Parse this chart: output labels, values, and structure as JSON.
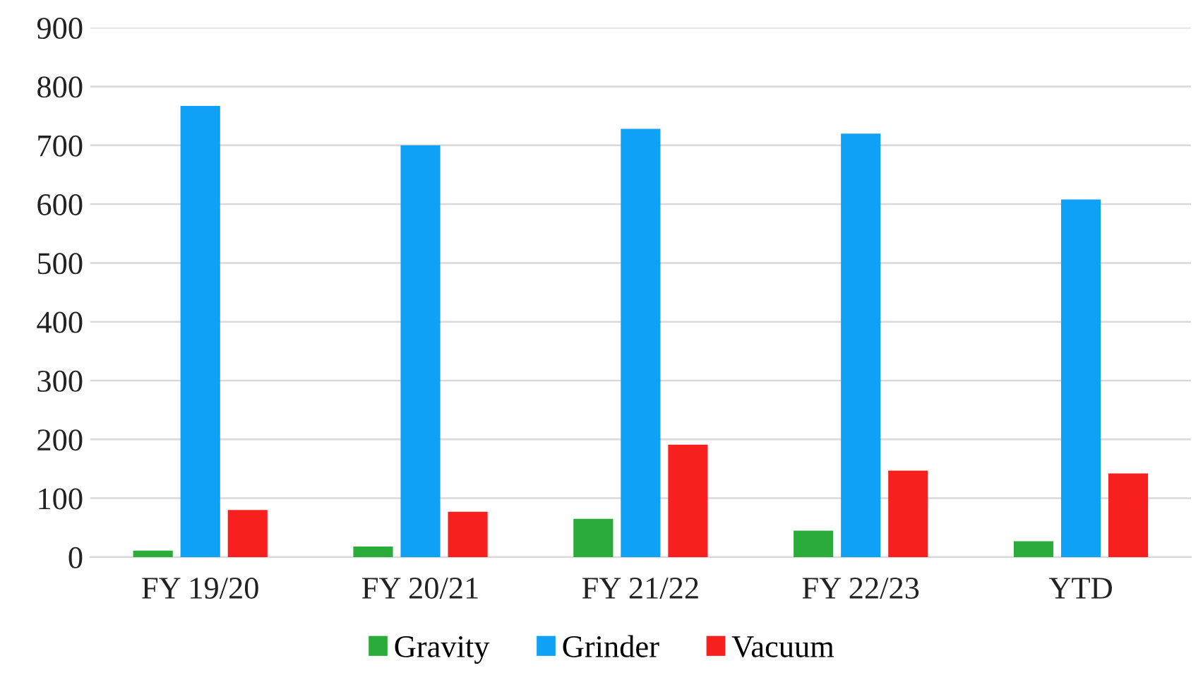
{
  "chart_data": {
    "type": "bar",
    "categories": [
      "FY 19/20",
      "FY 20/21",
      "FY 21/22",
      "FY 22/23",
      "YTD"
    ],
    "series": [
      {
        "name": "Gravity",
        "color": "#2aab3a",
        "values": [
          11,
          18,
          65,
          45,
          27
        ]
      },
      {
        "name": "Grinder",
        "color": "#0ea1f5",
        "values": [
          767,
          700,
          728,
          720,
          608
        ]
      },
      {
        "name": "Vacuum",
        "color": "#f81f1f",
        "values": [
          80,
          77,
          191,
          147,
          142
        ]
      }
    ],
    "ylim": [
      0,
      900
    ],
    "yticks": [
      0,
      100,
      200,
      300,
      400,
      500,
      600,
      700,
      800,
      900
    ],
    "grid": "y",
    "legend": "bottom"
  }
}
